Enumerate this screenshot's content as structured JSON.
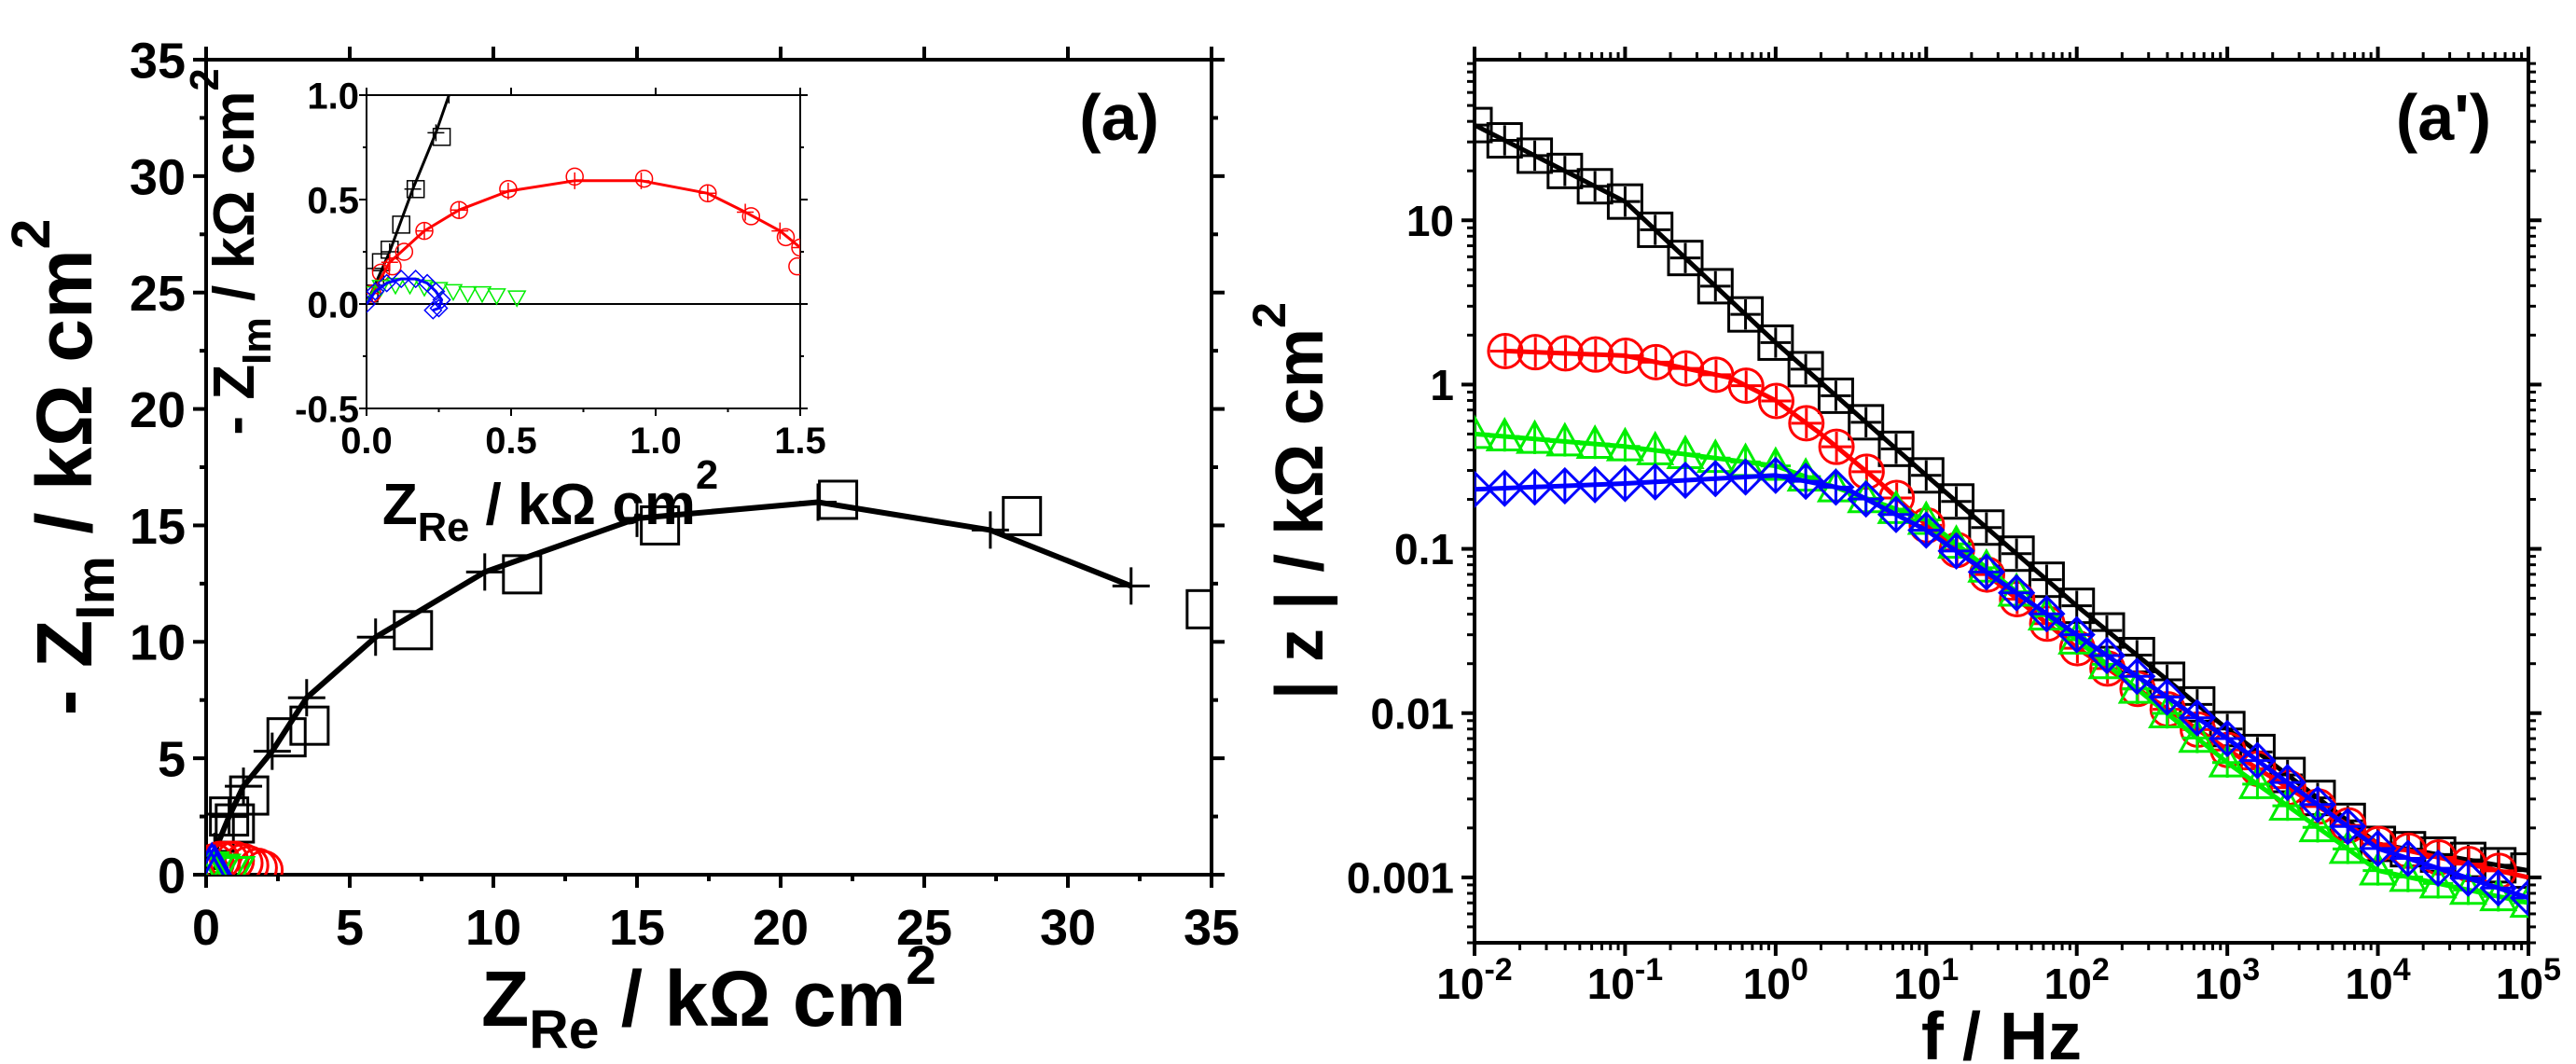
{
  "colors": {
    "black": "#000000",
    "red": "#ff0000",
    "green": "#00ee00",
    "blue": "#0000ff"
  },
  "chart_data": [
    {
      "id": "main",
      "type": "scatter",
      "panel_label": "(a)",
      "xlabel": {
        "main": "Z",
        "sub": "Re",
        "rest": " / kΩ cm",
        "sup": "2"
      },
      "ylabel": {
        "main": "- Z",
        "sub": "Im",
        "rest": " / kΩ cm",
        "sup": "2"
      },
      "xlim": [
        0,
        35
      ],
      "ylim": [
        0,
        35
      ],
      "xticks": [
        "0",
        "5",
        "10",
        "15",
        "20",
        "25",
        "30",
        "35"
      ],
      "yticks": [
        "0",
        "5",
        "10",
        "15",
        "20",
        "25",
        "30",
        "35"
      ],
      "series": [
        {
          "name": "black data",
          "color": "black",
          "marker": "square",
          "x": [
            0.3,
            0.8,
            1.0,
            1.5,
            2.8,
            3.6,
            7.2,
            11.0,
            15.8,
            22.0,
            28.4,
            34.8
          ],
          "y": [
            1.8,
            2.5,
            2.2,
            3.4,
            5.9,
            6.4,
            10.5,
            12.9,
            15.0,
            16.1,
            15.4,
            11.4
          ]
        },
        {
          "name": "black fit",
          "color": "black",
          "marker": "plus",
          "line": true,
          "x": [
            0.3,
            0.8,
            1.3,
            2.3,
            3.5,
            5.9,
            9.7,
            15.0,
            21.3,
            27.3,
            32.2
          ],
          "y": [
            1.0,
            2.5,
            3.8,
            5.3,
            7.6,
            10.2,
            13.0,
            15.3,
            16.0,
            14.8,
            12.4
          ]
        },
        {
          "name": "red data",
          "color": "red",
          "marker": "circle",
          "x": [
            0.1,
            0.3,
            0.5,
            0.8,
            1.0,
            1.3,
            1.5,
            1.8,
            2.0
          ],
          "y": [
            0.2,
            0.5,
            0.6,
            0.6,
            0.6,
            0.5,
            0.4,
            0.3,
            0.2
          ]
        },
        {
          "name": "green data",
          "color": "green",
          "marker": "triangle-down",
          "x": [
            0.1,
            0.3,
            0.5,
            0.8,
            1.0
          ],
          "y": [
            0.3,
            0.2,
            0.2,
            0.1,
            0.1
          ]
        },
        {
          "name": "blue data",
          "color": "blue",
          "marker": "triangle-up",
          "x": [
            0.1,
            0.2,
            0.3,
            0.4
          ],
          "y": [
            0.3,
            0.5,
            0.4,
            0.2
          ]
        }
      ]
    },
    {
      "id": "inset",
      "type": "scatter",
      "xlabel": {
        "main": "Z",
        "sub": "Re",
        "rest": " / kΩ cm",
        "sup": "2"
      },
      "ylabel": {
        "main": "- Z",
        "sub": "Im",
        "rest": " / kΩ cm",
        "sup": "2"
      },
      "xlim": [
        0,
        1.5
      ],
      "ylim": [
        -0.5,
        1.0
      ],
      "xticks": [
        "0.0",
        "0.5",
        "1.0",
        "1.5"
      ],
      "yticks": [
        "-0.5",
        "0.0",
        "0.5",
        "1.0"
      ],
      "series": [
        {
          "name": "black data",
          "color": "black",
          "marker": "square",
          "x": [
            0.01,
            0.03,
            0.05,
            0.08,
            0.12,
            0.17,
            0.26
          ],
          "y": [
            0.05,
            0.13,
            0.2,
            0.26,
            0.38,
            0.55,
            0.8
          ]
        },
        {
          "name": "black fit",
          "color": "black",
          "marker": "plus",
          "line": true,
          "x": [
            0.0,
            0.08,
            0.16,
            0.24,
            0.285
          ],
          "y": [
            0.0,
            0.25,
            0.55,
            0.82,
            1.0
          ]
        },
        {
          "name": "red data",
          "color": "red",
          "marker": "circle",
          "x": [
            0.02,
            0.05,
            0.09,
            0.13,
            0.2,
            0.32,
            0.49,
            0.72,
            0.96,
            1.18,
            1.33,
            1.45,
            1.5,
            1.49
          ],
          "y": [
            0.05,
            0.15,
            0.18,
            0.25,
            0.35,
            0.45,
            0.55,
            0.61,
            0.6,
            0.53,
            0.42,
            0.32,
            0.27,
            0.18
          ]
        },
        {
          "name": "red fit",
          "color": "red",
          "marker": "plus",
          "line": true,
          "x": [
            0.02,
            0.08,
            0.2,
            0.32,
            0.49,
            0.72,
            0.95,
            1.18,
            1.31,
            1.43,
            1.5
          ],
          "y": [
            0.05,
            0.2,
            0.35,
            0.45,
            0.54,
            0.59,
            0.59,
            0.53,
            0.44,
            0.35,
            0.27
          ]
        },
        {
          "name": "green data",
          "color": "green",
          "marker": "triangle-down",
          "x": [
            0.0,
            0.05,
            0.1,
            0.15,
            0.2,
            0.25,
            0.3,
            0.35,
            0.4,
            0.45,
            0.52
          ],
          "y": [
            0.05,
            0.08,
            0.09,
            0.09,
            0.08,
            0.07,
            0.06,
            0.05,
            0.05,
            0.04,
            0.03
          ]
        },
        {
          "name": "blue fit",
          "color": "blue",
          "marker": "diamond",
          "line": true,
          "x": [
            0.0,
            0.03,
            0.07,
            0.12,
            0.17,
            0.21,
            0.24,
            0.26,
            0.25,
            0.23
          ],
          "y": [
            0.0,
            0.06,
            0.1,
            0.12,
            0.12,
            0.1,
            0.06,
            0.02,
            -0.02,
            -0.03
          ]
        }
      ]
    },
    {
      "id": "bode",
      "type": "line",
      "panel_label": "(a')",
      "xlabel": {
        "main": "f / Hz",
        "sub": "",
        "rest": "",
        "sup": ""
      },
      "ylabel": {
        "main": "| z |",
        "sub": "",
        "rest": " / kΩ cm",
        "sup": "2"
      },
      "xscale": "log",
      "yscale": "log",
      "xlim": [
        0.01,
        100000
      ],
      "ylim": [
        0.0004,
        95
      ],
      "xticks": [
        {
          "base": "10",
          "exp": "-2"
        },
        {
          "base": "10",
          "exp": "-1"
        },
        {
          "base": "10",
          "exp": "0"
        },
        {
          "base": "10",
          "exp": "1"
        },
        {
          "base": "10",
          "exp": "2"
        },
        {
          "base": "10",
          "exp": "3"
        },
        {
          "base": "10",
          "exp": "4"
        },
        {
          "base": "10",
          "exp": "5"
        }
      ],
      "yticks": [
        "0.001",
        "0.01",
        "0.1",
        "1",
        "10"
      ],
      "series": [
        {
          "name": "black",
          "color": "black",
          "marker": "square",
          "x": [
            0.01,
            0.1,
            1,
            10,
            100,
            1000,
            10000,
            100000
          ],
          "y": [
            38,
            13,
            1.8,
            0.28,
            0.045,
            0.008,
            0.0016,
            0.0011
          ]
        },
        {
          "name": "red",
          "color": "red",
          "marker": "circle",
          "x": [
            0.016,
            0.1,
            0.5,
            1,
            2,
            5,
            10,
            100,
            1000,
            10000,
            100000
          ],
          "y": [
            1.6,
            1.5,
            1.1,
            0.8,
            0.5,
            0.25,
            0.14,
            0.025,
            0.006,
            0.0016,
            0.001
          ]
        },
        {
          "name": "green",
          "color": "green",
          "marker": "triangle-up",
          "x": [
            0.01,
            0.1,
            1,
            10,
            100,
            1000,
            10000,
            100000
          ],
          "y": [
            0.5,
            0.42,
            0.32,
            0.15,
            0.028,
            0.005,
            0.0011,
            0.0007
          ]
        },
        {
          "name": "blue",
          "color": "blue",
          "marker": "diamond",
          "x": [
            0.01,
            0.1,
            1,
            3,
            10,
            100,
            1000,
            10000,
            100000
          ],
          "y": [
            0.23,
            0.25,
            0.28,
            0.23,
            0.13,
            0.03,
            0.007,
            0.0015,
            0.00075
          ]
        }
      ]
    }
  ]
}
